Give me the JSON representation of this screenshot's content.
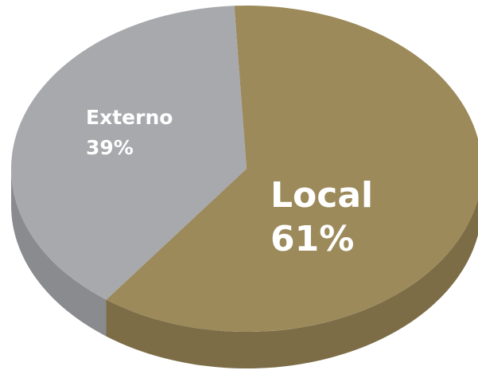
{
  "chart_data": {
    "type": "pie",
    "style": "3d",
    "slices": [
      {
        "label": "Local",
        "value": 61,
        "display": "61%",
        "color": "#9c8a5b",
        "side_color": "#7c6d47"
      },
      {
        "label": "Externo",
        "value": 39,
        "display": "39%",
        "color": "#a8a9ad",
        "side_color": "#8a8b8f"
      }
    ],
    "legend": "none",
    "title": ""
  }
}
